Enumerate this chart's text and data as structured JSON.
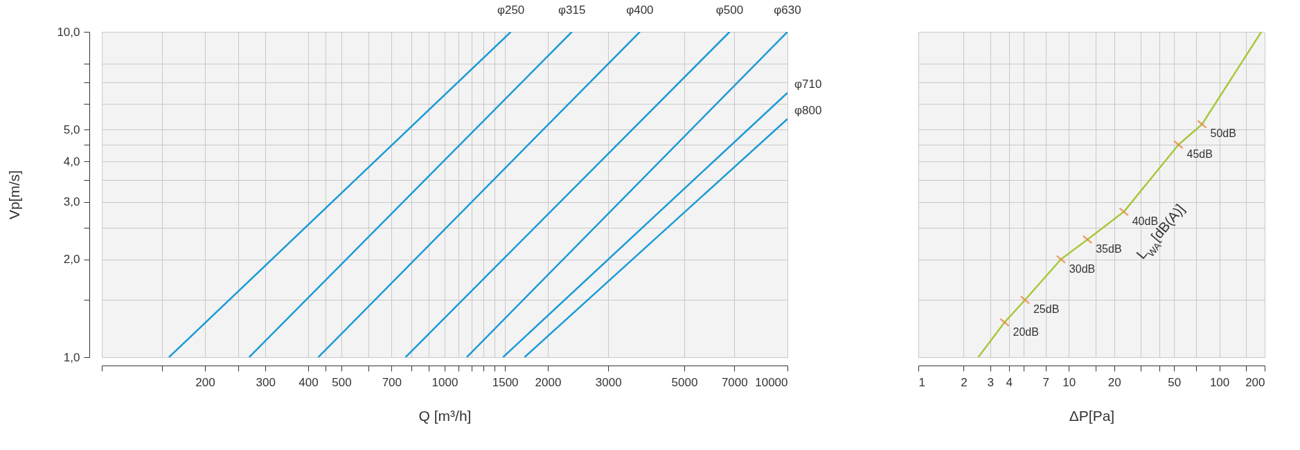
{
  "chart_data": [
    {
      "type": "line",
      "xlabel": "Q [m³/h]",
      "ylabel": "Vp[m/s]",
      "log": "xy",
      "grid": true,
      "xlim": [
        100,
        10000
      ],
      "ylim": [
        1,
        10
      ],
      "xticks": [
        {
          "value": 100,
          "label": null
        },
        {
          "value": 150,
          "label": null
        },
        200,
        {
          "value": 250,
          "label": null
        },
        300,
        400,
        {
          "value": 450,
          "label": null
        },
        500,
        {
          "value": 600,
          "label": null
        },
        700,
        {
          "value": 800,
          "label": null
        },
        {
          "value": 900,
          "label": null
        },
        1000,
        {
          "value": 1100,
          "label": null
        },
        {
          "value": 1200,
          "label": null
        },
        {
          "value": 1300,
          "label": null
        },
        {
          "value": 1400,
          "label": null
        },
        1500,
        2000,
        3000,
        5000,
        7000,
        10000
      ],
      "yticks": [
        {
          "value": 1,
          "label": "1,0"
        },
        {
          "value": 1.5,
          "label": null
        },
        {
          "value": 2,
          "label": "2,0"
        },
        {
          "value": 2.5,
          "label": null
        },
        {
          "value": 3,
          "label": "3,0"
        },
        {
          "value": 3.5,
          "label": null
        },
        {
          "value": 4,
          "label": "4,0"
        },
        {
          "value": 4.5,
          "label": null
        },
        {
          "value": 5,
          "label": "5,0"
        },
        {
          "value": 6,
          "label": null
        },
        {
          "value": 7,
          "label": null
        },
        {
          "value": 8,
          "label": null
        },
        {
          "value": 10,
          "label": "10,0"
        }
      ],
      "series": [
        {
          "name": "φ250",
          "color": "#1b9ad6",
          "x": [
            157,
            1560
          ],
          "values": [
            1,
            10
          ]
        },
        {
          "name": "φ315",
          "color": "#1b9ad6",
          "x": [
            269,
            2350
          ],
          "values": [
            1,
            10
          ]
        },
        {
          "name": "φ400",
          "color": "#1b9ad6",
          "x": [
            428,
            3710
          ],
          "values": [
            1,
            10
          ]
        },
        {
          "name": "φ500",
          "color": "#1b9ad6",
          "x": [
            769,
            6780
          ],
          "values": [
            1,
            10
          ]
        },
        {
          "name": "φ630",
          "color": "#1b9ad6",
          "x": [
            1160,
            10000
          ],
          "values": [
            1,
            10
          ]
        },
        {
          "name": "φ710",
          "color": "#1b9ad6",
          "x": [
            1480,
            10000
          ],
          "values": [
            1,
            6.5
          ]
        },
        {
          "name": "φ800",
          "color": "#1b9ad6",
          "x": [
            1710,
            10000
          ],
          "values": [
            1,
            5.4
          ]
        }
      ]
    },
    {
      "type": "line",
      "xlabel": "ΔP[Pa]",
      "log": "xy",
      "grid": true,
      "tick_labels": "x",
      "xlim": [
        1,
        200
      ],
      "ylim": [
        1,
        10
      ],
      "xticks": [
        1,
        2,
        3,
        4,
        {
          "value": 5,
          "label": null
        },
        7,
        10,
        {
          "value": 15,
          "label": null
        },
        20,
        {
          "value": 30,
          "label": null
        },
        {
          "value": 40,
          "label": null
        },
        50,
        {
          "value": 70,
          "label": null
        },
        100,
        {
          "value": 150,
          "label": null
        },
        200
      ],
      "yticks": [
        {
          "value": 1,
          "label": null
        },
        {
          "value": 1.5,
          "label": null
        },
        {
          "value": 2,
          "label": null
        },
        {
          "value": 2.5,
          "label": null
        },
        {
          "value": 3,
          "label": null
        },
        {
          "value": 3.5,
          "label": null
        },
        {
          "value": 4,
          "label": null
        },
        {
          "value": 4.5,
          "label": null
        },
        {
          "value": 5,
          "label": null
        },
        {
          "value": 6,
          "label": null
        },
        {
          "value": 7,
          "label": null
        },
        {
          "value": 8,
          "label": null
        },
        {
          "value": 10,
          "label": null
        }
      ],
      "series": [
        {
          "color": "#a6c83b",
          "x": [
            2.5,
            3.74,
            5.11,
            8.86,
            13.3,
            23.2,
            53.5,
            76.7,
            190
          ],
          "values": [
            1,
            1.28,
            1.5,
            2.0,
            2.3,
            2.8,
            4.5,
            5.2,
            10
          ]
        },
        {
          "type": "scatter",
          "color": "#ef7d3a",
          "x": [
            3.74,
            5.11,
            8.86,
            13.3,
            23.2,
            53.5,
            76.7
          ],
          "values": [
            1.28,
            1.5,
            2.0,
            2.3,
            2.8,
            4.5,
            5.2
          ]
        }
      ],
      "annotations": [
        {
          "text": "20dB",
          "x": 3.74,
          "y": 1.28
        },
        {
          "text": "25dB",
          "x": 5.11,
          "y": 1.5
        },
        {
          "text": "30dB",
          "x": 8.86,
          "y": 2.0
        },
        {
          "text": "35dB",
          "x": 13.3,
          "y": 2.3
        },
        {
          "text": "40dB",
          "x": 23.2,
          "y": 2.8
        },
        {
          "text": "45dB",
          "x": 53.5,
          "y": 4.5
        },
        {
          "text": "50dB",
          "x": 76.7,
          "y": 5.2
        },
        "L$_{WA}$[dB(A)]"
      ]
    }
  ]
}
